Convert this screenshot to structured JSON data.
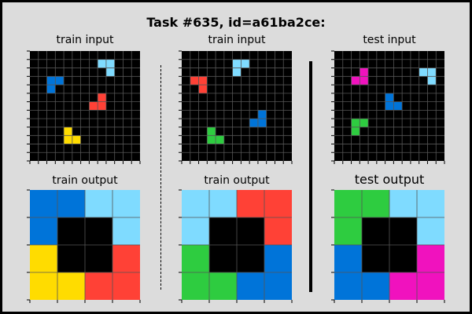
{
  "figure": {
    "title": "Task #635, id=a61ba2ce:"
  },
  "palette": {
    "0": "#000000",
    "1": "#0074d9",
    "2": "#ff4136",
    "3": "#2ecc40",
    "4": "#ffdc00",
    "6": "#f012be",
    "8": "#7fdbff"
  },
  "grid_line_color": "#555555",
  "panels": [
    {
      "id": "train-input-1",
      "label": "train input",
      "grid": [
        [
          0,
          0,
          0,
          0,
          0,
          0,
          0,
          0,
          0,
          0,
          0,
          0,
          0
        ],
        [
          0,
          0,
          0,
          0,
          0,
          0,
          0,
          0,
          8,
          8,
          0,
          0,
          0
        ],
        [
          0,
          0,
          0,
          0,
          0,
          0,
          0,
          0,
          0,
          8,
          0,
          0,
          0
        ],
        [
          0,
          0,
          1,
          1,
          0,
          0,
          0,
          0,
          0,
          0,
          0,
          0,
          0
        ],
        [
          0,
          0,
          1,
          0,
          0,
          0,
          0,
          0,
          0,
          0,
          0,
          0,
          0
        ],
        [
          0,
          0,
          0,
          0,
          0,
          0,
          0,
          0,
          2,
          0,
          0,
          0,
          0
        ],
        [
          0,
          0,
          0,
          0,
          0,
          0,
          0,
          2,
          2,
          0,
          0,
          0,
          0
        ],
        [
          0,
          0,
          0,
          0,
          0,
          0,
          0,
          0,
          0,
          0,
          0,
          0,
          0
        ],
        [
          0,
          0,
          0,
          0,
          0,
          0,
          0,
          0,
          0,
          0,
          0,
          0,
          0
        ],
        [
          0,
          0,
          0,
          0,
          4,
          0,
          0,
          0,
          0,
          0,
          0,
          0,
          0
        ],
        [
          0,
          0,
          0,
          0,
          4,
          4,
          0,
          0,
          0,
          0,
          0,
          0,
          0
        ],
        [
          0,
          0,
          0,
          0,
          0,
          0,
          0,
          0,
          0,
          0,
          0,
          0,
          0
        ],
        [
          0,
          0,
          0,
          0,
          0,
          0,
          0,
          0,
          0,
          0,
          0,
          0,
          0
        ]
      ]
    },
    {
      "id": "train-input-2",
      "label": "train input",
      "grid": [
        [
          0,
          0,
          0,
          0,
          0,
          0,
          0,
          0,
          0,
          0,
          0,
          0,
          0
        ],
        [
          0,
          0,
          0,
          0,
          0,
          0,
          8,
          8,
          0,
          0,
          0,
          0,
          0
        ],
        [
          0,
          0,
          0,
          0,
          0,
          0,
          8,
          0,
          0,
          0,
          0,
          0,
          0
        ],
        [
          0,
          2,
          2,
          0,
          0,
          0,
          0,
          0,
          0,
          0,
          0,
          0,
          0
        ],
        [
          0,
          0,
          2,
          0,
          0,
          0,
          0,
          0,
          0,
          0,
          0,
          0,
          0
        ],
        [
          0,
          0,
          0,
          0,
          0,
          0,
          0,
          0,
          0,
          0,
          0,
          0,
          0
        ],
        [
          0,
          0,
          0,
          0,
          0,
          0,
          0,
          0,
          0,
          0,
          0,
          0,
          0
        ],
        [
          0,
          0,
          0,
          0,
          0,
          0,
          0,
          0,
          0,
          1,
          0,
          0,
          0
        ],
        [
          0,
          0,
          0,
          0,
          0,
          0,
          0,
          0,
          1,
          1,
          0,
          0,
          0
        ],
        [
          0,
          0,
          0,
          3,
          0,
          0,
          0,
          0,
          0,
          0,
          0,
          0,
          0
        ],
        [
          0,
          0,
          0,
          3,
          3,
          0,
          0,
          0,
          0,
          0,
          0,
          0,
          0
        ],
        [
          0,
          0,
          0,
          0,
          0,
          0,
          0,
          0,
          0,
          0,
          0,
          0,
          0
        ],
        [
          0,
          0,
          0,
          0,
          0,
          0,
          0,
          0,
          0,
          0,
          0,
          0,
          0
        ]
      ]
    },
    {
      "id": "test-input",
      "label": "test input",
      "grid": [
        [
          0,
          0,
          0,
          0,
          0,
          0,
          0,
          0,
          0,
          0,
          0,
          0,
          0
        ],
        [
          0,
          0,
          0,
          0,
          0,
          0,
          0,
          0,
          0,
          0,
          0,
          0,
          0
        ],
        [
          0,
          0,
          0,
          6,
          0,
          0,
          0,
          0,
          0,
          0,
          8,
          8,
          0
        ],
        [
          0,
          0,
          6,
          6,
          0,
          0,
          0,
          0,
          0,
          0,
          0,
          8,
          0
        ],
        [
          0,
          0,
          0,
          0,
          0,
          0,
          0,
          0,
          0,
          0,
          0,
          0,
          0
        ],
        [
          0,
          0,
          0,
          0,
          0,
          0,
          1,
          0,
          0,
          0,
          0,
          0,
          0
        ],
        [
          0,
          0,
          0,
          0,
          0,
          0,
          1,
          1,
          0,
          0,
          0,
          0,
          0
        ],
        [
          0,
          0,
          0,
          0,
          0,
          0,
          0,
          0,
          0,
          0,
          0,
          0,
          0
        ],
        [
          0,
          0,
          3,
          3,
          0,
          0,
          0,
          0,
          0,
          0,
          0,
          0,
          0
        ],
        [
          0,
          0,
          3,
          0,
          0,
          0,
          0,
          0,
          0,
          0,
          0,
          0,
          0
        ],
        [
          0,
          0,
          0,
          0,
          0,
          0,
          0,
          0,
          0,
          0,
          0,
          0,
          0
        ],
        [
          0,
          0,
          0,
          0,
          0,
          0,
          0,
          0,
          0,
          0,
          0,
          0,
          0
        ],
        [
          0,
          0,
          0,
          0,
          0,
          0,
          0,
          0,
          0,
          0,
          0,
          0,
          0
        ]
      ]
    },
    {
      "id": "train-output-1",
      "label": "train output",
      "grid": [
        [
          1,
          1,
          8,
          8
        ],
        [
          1,
          0,
          0,
          8
        ],
        [
          4,
          0,
          0,
          2
        ],
        [
          4,
          4,
          2,
          2
        ]
      ]
    },
    {
      "id": "train-output-2",
      "label": "train output",
      "grid": [
        [
          8,
          8,
          2,
          2
        ],
        [
          8,
          0,
          0,
          2
        ],
        [
          3,
          0,
          0,
          1
        ],
        [
          3,
          3,
          1,
          1
        ]
      ]
    },
    {
      "id": "test-output",
      "label": "test output",
      "grid": [
        [
          3,
          3,
          8,
          8
        ],
        [
          3,
          0,
          0,
          8
        ],
        [
          1,
          0,
          0,
          6
        ],
        [
          1,
          1,
          6,
          6
        ]
      ]
    }
  ]
}
